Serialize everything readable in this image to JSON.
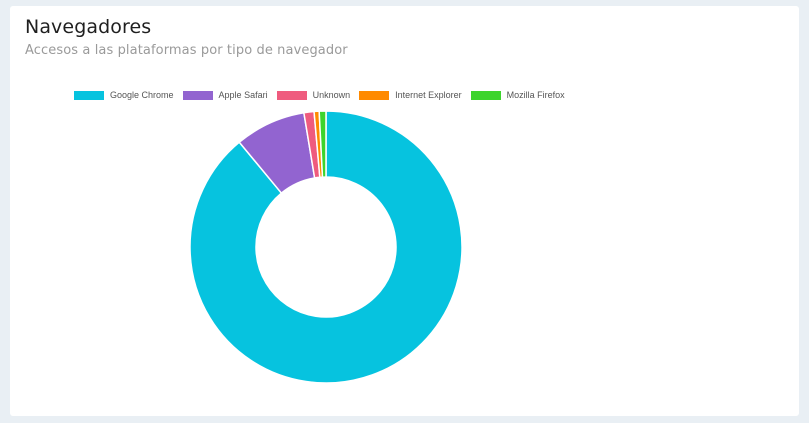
{
  "card": {
    "title": "Navegadores",
    "subtitle": "Accesos a las plataformas por tipo de navegador"
  },
  "chart_data": {
    "type": "pie",
    "donut": true,
    "title": "Navegadores",
    "subtitle": "Accesos a las plataformas por tipo de navegador",
    "legend_position": "top",
    "categories": [
      "Google Chrome",
      "Apple Safari",
      "Unknown",
      "Internet Explorer",
      "Mozilla Firefox"
    ],
    "values": [
      89.0,
      8.4,
      1.2,
      0.6,
      0.8
    ],
    "colors": [
      "#06c3df",
      "#9264d0",
      "#ef5b7e",
      "#ff8a00",
      "#3dd42c"
    ]
  }
}
